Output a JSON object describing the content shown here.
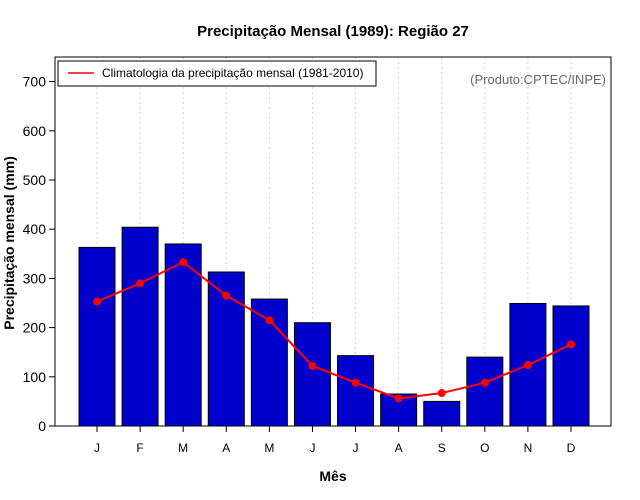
{
  "chart_data": {
    "type": "bar",
    "title": "Precipitação Mensal (1989): Região 27",
    "xlabel": "Mês",
    "ylabel": "Precipitação mensal (mm)",
    "ylim": [
      0,
      750
    ],
    "yticks": [
      0,
      100,
      200,
      300,
      400,
      500,
      600,
      700
    ],
    "categories": [
      "J",
      "F",
      "M",
      "A",
      "M",
      "J",
      "J",
      "A",
      "S",
      "O",
      "N",
      "D"
    ],
    "series": [
      {
        "name": "Precipitação mensal (1989)",
        "type": "bar",
        "color": "#0000CC",
        "values": [
          363,
          404,
          370,
          313,
          258,
          210,
          143,
          65,
          50,
          140,
          249,
          244
        ]
      },
      {
        "name": "Climatologia da precipitação mensal (1981-2010)",
        "type": "line",
        "color": "#FF0000",
        "values": [
          253,
          290,
          333,
          265,
          215,
          122,
          88,
          56,
          67,
          88,
          124,
          166
        ]
      }
    ],
    "legend": {
      "position": "top-left",
      "entries": [
        "Climatologia da precipitação mensal (1981-2010)"
      ]
    },
    "annotation": "(Produto:CPTEC/INPE)",
    "grid": {
      "x": true,
      "y": false,
      "style": "dotted"
    }
  }
}
